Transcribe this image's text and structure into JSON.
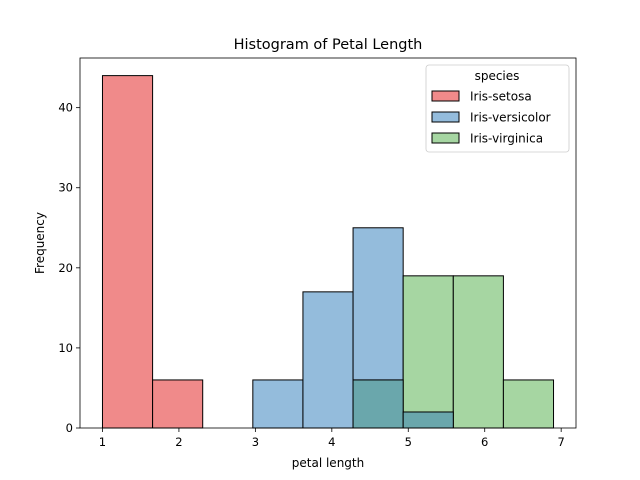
{
  "chart_data": {
    "type": "histogram",
    "title": "Histogram of Petal Length",
    "xlabel": "petal length",
    "ylabel": "Frequency",
    "xlim": [
      0.706,
      7.194
    ],
    "ylim": [
      0,
      46.2
    ],
    "xticks": [
      1,
      2,
      3,
      4,
      5,
      6,
      7
    ],
    "yticks": [
      0,
      10,
      20,
      30,
      40
    ],
    "bin_edges": [
      1.0,
      1.6556,
      2.3111,
      2.9667,
      3.6222,
      4.2778,
      4.9333,
      5.5889,
      6.2444,
      6.9
    ],
    "legend": {
      "title": "species",
      "position": "top-right"
    },
    "grid": false,
    "series": [
      {
        "name": "Iris-setosa",
        "color": "#f08a8a",
        "counts": [
          44,
          6,
          0,
          0,
          0,
          0,
          0,
          0,
          0
        ]
      },
      {
        "name": "Iris-versicolor",
        "color": "#94bcdc",
        "counts": [
          0,
          0,
          0,
          6,
          17,
          25,
          2,
          0,
          0
        ]
      },
      {
        "name": "Iris-virginica",
        "color": "#a6d6a2",
        "counts": [
          0,
          0,
          0,
          0,
          0,
          6,
          19,
          19,
          6
        ]
      }
    ],
    "overlap_color": "#6aa7ac"
  }
}
